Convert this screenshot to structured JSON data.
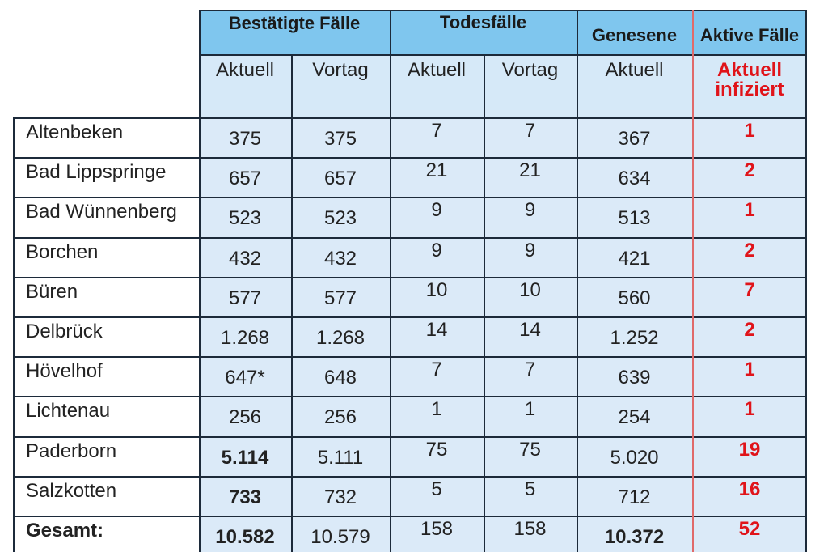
{
  "header": {
    "confirmed": "Bestätigte Fälle",
    "deaths": "Todesfälle",
    "recovered": "Genesene",
    "active": "Aktive Fälle"
  },
  "subheader": {
    "confirmed_current": "Aktuell",
    "confirmed_previous": "Vortag",
    "deaths_current": "Aktuell",
    "deaths_previous": "Vortag",
    "recovered_current": "Aktuell",
    "active_current_line1": "Aktuell",
    "active_current_line2": "infiziert"
  },
  "rows": [
    {
      "name": "Altenbeken",
      "conf_cur": "375",
      "conf_prev": "375",
      "death_cur": "7",
      "death_prev": "7",
      "recovered": "367",
      "active": "1",
      "bold_cur": false,
      "bold_rec": false
    },
    {
      "name": "Bad Lippspringe",
      "conf_cur": "657",
      "conf_prev": "657",
      "death_cur": "21",
      "death_prev": "21",
      "recovered": "634",
      "active": "2",
      "bold_cur": false,
      "bold_rec": false
    },
    {
      "name": "Bad Wünnenberg",
      "conf_cur": "523",
      "conf_prev": "523",
      "death_cur": "9",
      "death_prev": "9",
      "recovered": "513",
      "active": "1",
      "bold_cur": false,
      "bold_rec": false
    },
    {
      "name": "Borchen",
      "conf_cur": "432",
      "conf_prev": "432",
      "death_cur": "9",
      "death_prev": "9",
      "recovered": "421",
      "active": "2",
      "bold_cur": false,
      "bold_rec": false
    },
    {
      "name": "Büren",
      "conf_cur": "577",
      "conf_prev": "577",
      "death_cur": "10",
      "death_prev": "10",
      "recovered": "560",
      "active": "7",
      "bold_cur": false,
      "bold_rec": false
    },
    {
      "name": "Delbrück",
      "conf_cur": "1.268",
      "conf_prev": "1.268",
      "death_cur": "14",
      "death_prev": "14",
      "recovered": "1.252",
      "active": "2",
      "bold_cur": false,
      "bold_rec": false
    },
    {
      "name": "Hövelhof",
      "conf_cur": "647*",
      "conf_prev": "648",
      "death_cur": "7",
      "death_prev": "7",
      "recovered": "639",
      "active": "1",
      "bold_cur": false,
      "bold_rec": false
    },
    {
      "name": "Lichtenau",
      "conf_cur": "256",
      "conf_prev": "256",
      "death_cur": "1",
      "death_prev": "1",
      "recovered": "254",
      "active": "1",
      "bold_cur": false,
      "bold_rec": false
    },
    {
      "name": "Paderborn",
      "conf_cur": "5.114",
      "conf_prev": "5.111",
      "death_cur": "75",
      "death_prev": "75",
      "recovered": "5.020",
      "active": "19",
      "bold_cur": true,
      "bold_rec": false
    },
    {
      "name": "Salzkotten",
      "conf_cur": "733",
      "conf_prev": "732",
      "death_cur": "5",
      "death_prev": "5",
      "recovered": "712",
      "active": "16",
      "bold_cur": true,
      "bold_rec": false
    }
  ],
  "total": {
    "name": "Gesamt:",
    "conf_cur": "10.582",
    "conf_prev": "10.579",
    "death_cur": "158",
    "death_prev": "158",
    "recovered": "10.372",
    "active": "52"
  },
  "colors": {
    "header_bg": "#7fc6ee",
    "subheader_bg": "#d6e9f8",
    "row_light": "#ffffff",
    "row_tint": "#dbeaf8",
    "active_red": "#e0141a",
    "divider_red": "#e06a6a"
  }
}
